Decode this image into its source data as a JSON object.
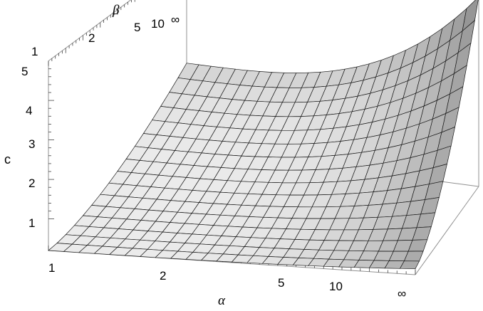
{
  "chart_data": {
    "type": "surface3d",
    "title": "",
    "xlabel": "α",
    "ylabel": "β",
    "zlabel": "c",
    "x_ticks": [
      "1",
      "2",
      "5",
      "10",
      "∞"
    ],
    "y_ticks": [
      "1",
      "2",
      "5",
      "10",
      "∞"
    ],
    "z_ticks": [
      "1",
      "2",
      "3",
      "4",
      "5"
    ],
    "zlim": [
      0.2,
      5
    ],
    "z_at_corners": {
      "alpha_1_beta_1": 0.2,
      "alpha_inf_beta_1": 0.35,
      "alpha_1_beta_inf": 2.35,
      "alpha_inf_beta_inf": 5
    },
    "surface_color": "#e6e6e6",
    "mesh_color": "#1a1a1a",
    "box_color": "#909090"
  }
}
